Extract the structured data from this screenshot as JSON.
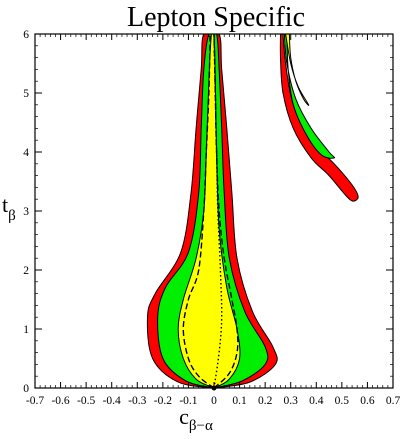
{
  "chart_data": {
    "type": "contour",
    "title": "Lepton Specific",
    "xlabel": {
      "main": "c",
      "sub": "β−α"
    },
    "ylabel": {
      "main": "t",
      "sub": "β"
    },
    "xlim": [
      -0.7,
      0.7
    ],
    "ylim": [
      0,
      6
    ],
    "xticks": [
      "-0.7",
      "-0.6",
      "-0.5",
      "-0.4",
      "-0.3",
      "-0.2",
      "-0.1",
      "0",
      "0.1",
      "0.2",
      "0.3",
      "0.4",
      "0.5",
      "0.6",
      "0.7"
    ],
    "yticks": [
      "0",
      "1",
      "2",
      "3",
      "4",
      "5",
      "6"
    ],
    "grid": false,
    "legend": "none",
    "colors": {
      "outer": "#ff0000",
      "middle": "#00ee00",
      "inner": "#ffff00",
      "outline": "#000000"
    },
    "regions": [
      {
        "id": "left-branch-red",
        "fill": "outer",
        "points": [
          [
            0,
            0
          ],
          [
            0.14,
            0.1
          ],
          [
            0.24,
            0.4
          ],
          [
            0.23,
            0.7
          ],
          [
            0.15,
            1.3
          ],
          [
            0.09,
            2.2
          ],
          [
            0.07,
            3.3
          ],
          [
            0.05,
            4.4
          ],
          [
            0.03,
            5.4
          ],
          [
            0.02,
            6
          ],
          [
            -0.04,
            6
          ],
          [
            -0.05,
            5.4
          ],
          [
            -0.07,
            4.4
          ],
          [
            -0.09,
            3.3
          ],
          [
            -0.13,
            2.3
          ],
          [
            -0.23,
            1.6
          ],
          [
            -0.26,
            1.2
          ],
          [
            -0.24,
            0.5
          ],
          [
            -0.14,
            0.1
          ],
          [
            0,
            0
          ]
        ]
      },
      {
        "id": "left-branch-green",
        "fill": "middle",
        "points": [
          [
            0,
            0
          ],
          [
            0.11,
            0.12
          ],
          [
            0.2,
            0.4
          ],
          [
            0.2,
            0.7
          ],
          [
            0.12,
            1.3
          ],
          [
            0.06,
            2.2
          ],
          [
            0.04,
            3.3
          ],
          [
            0.03,
            4.4
          ],
          [
            0.02,
            5.4
          ],
          [
            0.01,
            6
          ],
          [
            -0.02,
            6
          ],
          [
            -0.04,
            5.4
          ],
          [
            -0.05,
            4.4
          ],
          [
            -0.06,
            3.3
          ],
          [
            -0.1,
            2.3
          ],
          [
            -0.19,
            1.7
          ],
          [
            -0.22,
            1.2
          ],
          [
            -0.2,
            0.5
          ],
          [
            -0.11,
            0.12
          ],
          [
            0,
            0
          ]
        ]
      },
      {
        "id": "left-branch-yellow",
        "fill": "inner",
        "points": [
          [
            0,
            0
          ],
          [
            0.06,
            0.15
          ],
          [
            0.1,
            0.5
          ],
          [
            0.09,
            1.0
          ],
          [
            0.05,
            1.7
          ],
          [
            0.02,
            2.7
          ],
          [
            0.01,
            4.0
          ],
          [
            0.005,
            5.2
          ],
          [
            0,
            6
          ],
          [
            -0.01,
            6
          ],
          [
            -0.02,
            5.2
          ],
          [
            -0.03,
            4.0
          ],
          [
            -0.04,
            3.0
          ],
          [
            -0.07,
            2.2
          ],
          [
            -0.12,
            1.5
          ],
          [
            -0.14,
            1.0
          ],
          [
            -0.12,
            0.5
          ],
          [
            -0.07,
            0.15
          ],
          [
            0,
            0
          ]
        ]
      },
      {
        "id": "right-branch-red",
        "fill": "outer",
        "points": [
          [
            0.27,
            6
          ],
          [
            0.28,
            5.5
          ],
          [
            0.31,
            4.8
          ],
          [
            0.38,
            4.2
          ],
          [
            0.47,
            3.8
          ],
          [
            0.53,
            3.5
          ],
          [
            0.56,
            3.3
          ],
          [
            0.56,
            3.2
          ],
          [
            0.53,
            3.2
          ],
          [
            0.45,
            3.6
          ],
          [
            0.38,
            3.9
          ],
          [
            0.31,
            4.4
          ],
          [
            0.27,
            5.0
          ],
          [
            0.26,
            5.6
          ],
          [
            0.26,
            6
          ]
        ]
      },
      {
        "id": "right-branch-green",
        "fill": "middle",
        "points": [
          [
            0.275,
            6
          ],
          [
            0.285,
            5.5
          ],
          [
            0.32,
            4.9
          ],
          [
            0.38,
            4.4
          ],
          [
            0.45,
            4.0
          ],
          [
            0.47,
            3.9
          ],
          [
            0.42,
            3.95
          ],
          [
            0.36,
            4.3
          ],
          [
            0.31,
            4.8
          ],
          [
            0.29,
            5.4
          ],
          [
            0.285,
            6
          ]
        ]
      },
      {
        "id": "right-branch-yellow",
        "fill": "inner",
        "points": [
          [
            0.28,
            6
          ],
          [
            0.3,
            5.5
          ],
          [
            0.33,
            5.1
          ],
          [
            0.37,
            4.8
          ],
          [
            0.35,
            4.9
          ],
          [
            0.32,
            5.2
          ],
          [
            0.3,
            5.6
          ],
          [
            0.295,
            6
          ]
        ]
      }
    ],
    "curves": [
      {
        "id": "dashed-left",
        "style": "dashed",
        "points": [
          [
            0,
            0
          ],
          [
            -0.06,
            0.2
          ],
          [
            -0.1,
            0.5
          ],
          [
            -0.12,
            1.0
          ],
          [
            -0.1,
            1.5
          ],
          [
            -0.06,
            2.0
          ],
          [
            -0.04,
            3.0
          ],
          [
            -0.03,
            4.0
          ],
          [
            -0.02,
            5.0
          ],
          [
            -0.015,
            6
          ]
        ]
      },
      {
        "id": "dashed-right",
        "style": "dashed",
        "points": [
          [
            0,
            0
          ],
          [
            0.06,
            0.25
          ],
          [
            0.09,
            0.6
          ],
          [
            0.09,
            1.0
          ],
          [
            0.07,
            1.5
          ],
          [
            0.04,
            2.2
          ],
          [
            0.02,
            3.0
          ],
          [
            0.01,
            4.0
          ],
          [
            0.005,
            5.0
          ],
          [
            0,
            6
          ]
        ]
      },
      {
        "id": "dotted-center",
        "style": "dotted",
        "points": [
          [
            0,
            0
          ],
          [
            0.02,
            0.6
          ],
          [
            0.03,
            1.2
          ],
          [
            0.025,
            2.0
          ],
          [
            0.015,
            3.0
          ],
          [
            0.01,
            4.0
          ],
          [
            0.005,
            5.0
          ],
          [
            0,
            6
          ]
        ]
      }
    ],
    "markers": [
      {
        "id": "sm-point",
        "x": 0,
        "y": 0
      }
    ]
  }
}
